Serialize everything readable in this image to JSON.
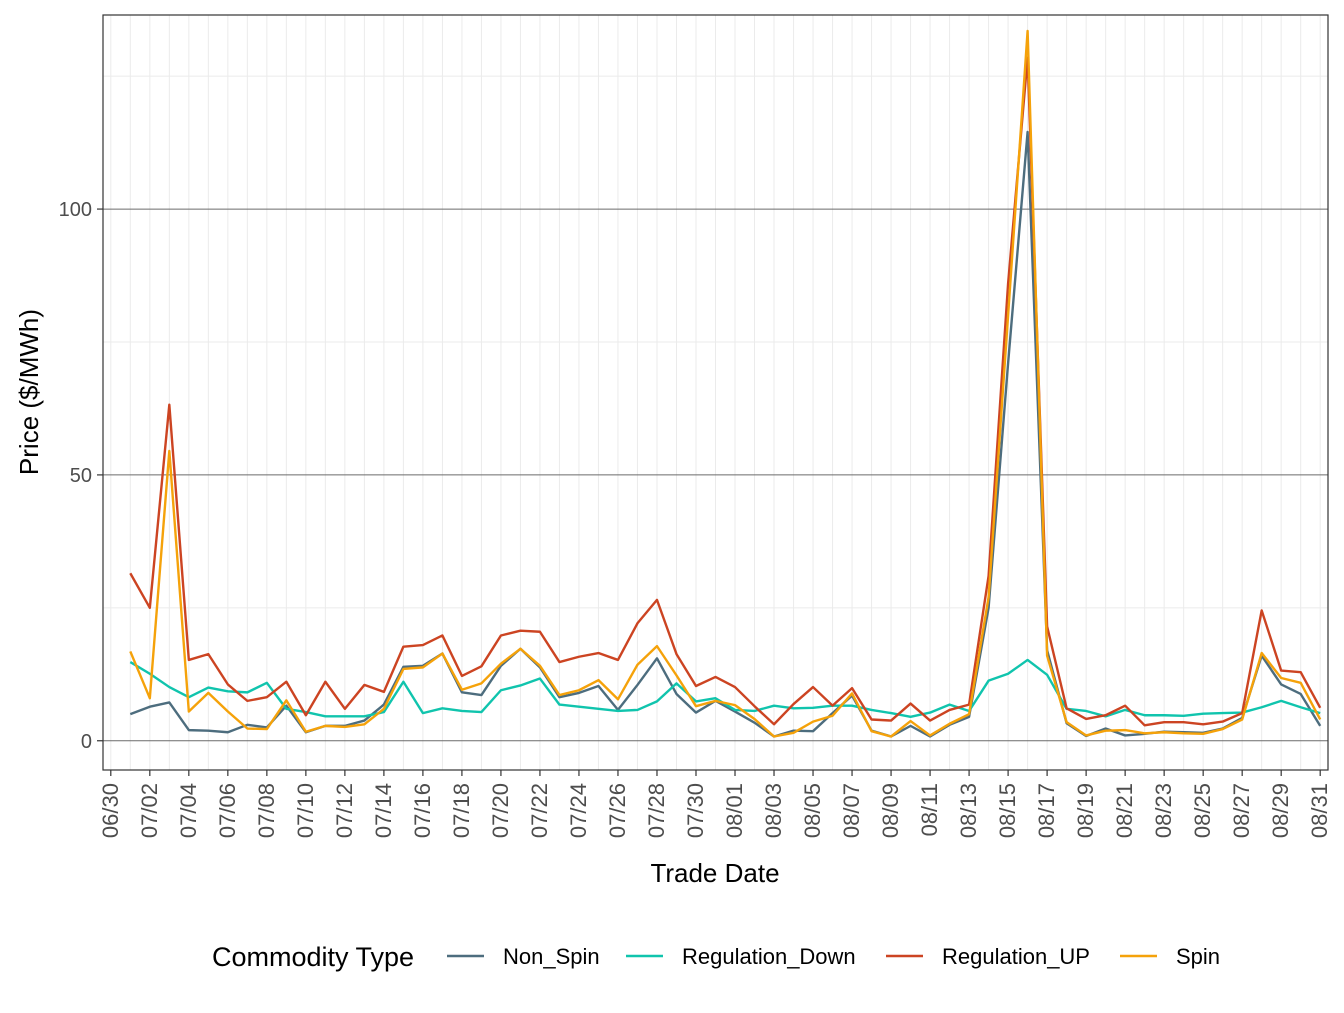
{
  "chart_data": {
    "type": "line",
    "title": "",
    "xlabel": "Trade Date",
    "ylabel": "Price ($/MWh)",
    "x_tick_labels": [
      "06/30",
      "07/02",
      "07/04",
      "07/06",
      "07/08",
      "07/10",
      "07/12",
      "07/14",
      "07/16",
      "07/18",
      "07/20",
      "07/22",
      "07/24",
      "07/26",
      "07/28",
      "07/30",
      "08/01",
      "08/03",
      "08/05",
      "08/07",
      "08/09",
      "08/11",
      "08/13",
      "08/15",
      "08/17",
      "08/19",
      "08/21",
      "08/23",
      "08/25",
      "08/27",
      "08/29",
      "08/31"
    ],
    "y_ticks": [
      0,
      50,
      100
    ],
    "y_tick_labels": [
      "0",
      "50",
      "100"
    ],
    "ylim": [
      -5.5,
      136.5
    ],
    "xlim": [
      "06/30",
      "08/31"
    ],
    "grid": true,
    "legend": {
      "title": "Commodity Type",
      "position": "bottom"
    },
    "x": [
      "07/01",
      "07/02",
      "07/03",
      "07/04",
      "07/05",
      "07/06",
      "07/07",
      "07/08",
      "07/09",
      "07/10",
      "07/11",
      "07/12",
      "07/13",
      "07/14",
      "07/15",
      "07/16",
      "07/17",
      "07/18",
      "07/19",
      "07/20",
      "07/21",
      "07/22",
      "07/23",
      "07/24",
      "07/25",
      "07/26",
      "07/27",
      "07/28",
      "07/29",
      "07/30",
      "07/31",
      "08/01",
      "08/02",
      "08/03",
      "08/04",
      "08/05",
      "08/06",
      "08/07",
      "08/08",
      "08/09",
      "08/10",
      "08/11",
      "08/12",
      "08/13",
      "08/14",
      "08/15",
      "08/16",
      "08/17",
      "08/18",
      "08/19",
      "08/20",
      "08/21",
      "08/22",
      "08/23",
      "08/24",
      "08/25",
      "08/26",
      "08/27",
      "08/28",
      "08/29",
      "08/30",
      "08/31"
    ],
    "series": [
      {
        "name": "Non_Spin",
        "color": "#4d6d7e",
        "values": [
          5,
          6.4,
          7.2,
          2,
          1.9,
          1.6,
          3,
          2.5,
          6.6,
          1.6,
          2.8,
          2.8,
          3.8,
          6.8,
          13.9,
          14.1,
          16.4,
          9.1,
          8.6,
          14.1,
          17.3,
          13.8,
          8.2,
          9,
          10.3,
          5.8,
          10.5,
          15.5,
          8.8,
          5.3,
          7.5,
          5.5,
          3.4,
          0.8,
          1.9,
          1.8,
          5.2,
          8.5,
          1.9,
          0.8,
          2.8,
          0.8,
          3,
          4.5,
          25,
          71,
          114.5,
          17,
          3.3,
          0.9,
          2.3,
          1,
          1.3,
          1.7,
          1.6,
          1.5,
          2.3,
          4.3,
          16,
          10.6,
          8.8,
          2.8
        ]
      },
      {
        "name": "Regulation_Down",
        "color": "#10c4ad",
        "values": [
          14.8,
          12.6,
          10.1,
          8.2,
          10,
          9.3,
          9.1,
          10.9,
          6,
          5.4,
          4.6,
          4.6,
          4.6,
          5.4,
          11.1,
          5.2,
          6.1,
          5.6,
          5.4,
          9.5,
          10.4,
          11.7,
          6.8,
          6.4,
          6,
          5.6,
          5.8,
          7.4,
          10.8,
          7.4,
          8,
          5.8,
          5.6,
          6.6,
          6.1,
          6.2,
          6.6,
          6.6,
          5.8,
          5.2,
          4.5,
          5.3,
          6.8,
          5.6,
          11.3,
          12.6,
          15.2,
          12.4,
          6,
          5.6,
          4.6,
          5.8,
          4.8,
          4.8,
          4.7,
          5.1,
          5.2,
          5.3,
          6.3,
          7.5,
          6.3,
          5.2
        ]
      },
      {
        "name": "Regulation_UP",
        "color": "#cc4422",
        "values": [
          31.5,
          25,
          63.2,
          15.2,
          16.3,
          10.6,
          7.5,
          8.2,
          11.1,
          4.8,
          11.1,
          6,
          10.5,
          9.2,
          17.7,
          18,
          19.8,
          12.2,
          14,
          19.8,
          20.7,
          20.5,
          14.8,
          15.8,
          16.5,
          15.2,
          22.1,
          26.5,
          16.3,
          10.3,
          12,
          10.1,
          6.5,
          3.1,
          6.9,
          10.1,
          6.6,
          9.9,
          4,
          3.8,
          7,
          3.8,
          5.8,
          6.8,
          31,
          86,
          128.5,
          21.5,
          6.1,
          4.1,
          4.8,
          6.6,
          2.9,
          3.5,
          3.5,
          3.1,
          3.6,
          5.2,
          24.5,
          13.2,
          12.9,
          6.2
        ]
      },
      {
        "name": "Spin",
        "color": "#f5a20a",
        "values": [
          16.8,
          8,
          54.5,
          5.5,
          9,
          5.5,
          2.3,
          2.2,
          7.6,
          1.7,
          2.8,
          2.6,
          3.1,
          6,
          13.5,
          13.8,
          16.4,
          9.6,
          10.8,
          14.5,
          17.3,
          14.1,
          8.6,
          9.5,
          11.4,
          7.8,
          14.3,
          17.8,
          12.3,
          6.5,
          7.5,
          6.7,
          4.1,
          0.8,
          1.5,
          3.6,
          4.7,
          8.9,
          1.8,
          0.8,
          3.7,
          1,
          3.2,
          5,
          27,
          80,
          133.5,
          16,
          3.5,
          1,
          1.9,
          2,
          1.4,
          1.6,
          1.4,
          1.3,
          2.2,
          4,
          16.5,
          11.8,
          10.9,
          4
        ]
      }
    ]
  }
}
